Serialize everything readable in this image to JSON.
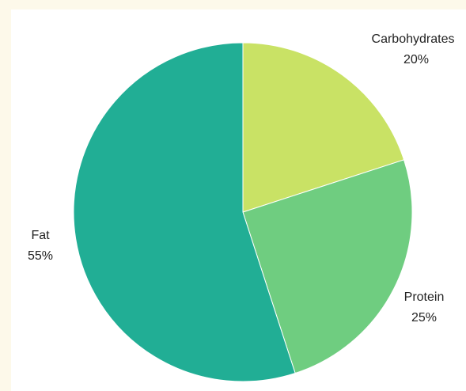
{
  "chart_data": {
    "type": "pie",
    "slices": [
      {
        "label": "Carbohydrates",
        "value": 20,
        "value_label": "20%",
        "color": "#c9e265"
      },
      {
        "label": "Protein",
        "value": 25,
        "value_label": "25%",
        "color": "#6fcd80"
      },
      {
        "label": "Fat",
        "value": 55,
        "value_label": "55%",
        "color": "#21ae95"
      }
    ],
    "start": "top",
    "direction": "clockwise",
    "legend": "none"
  }
}
